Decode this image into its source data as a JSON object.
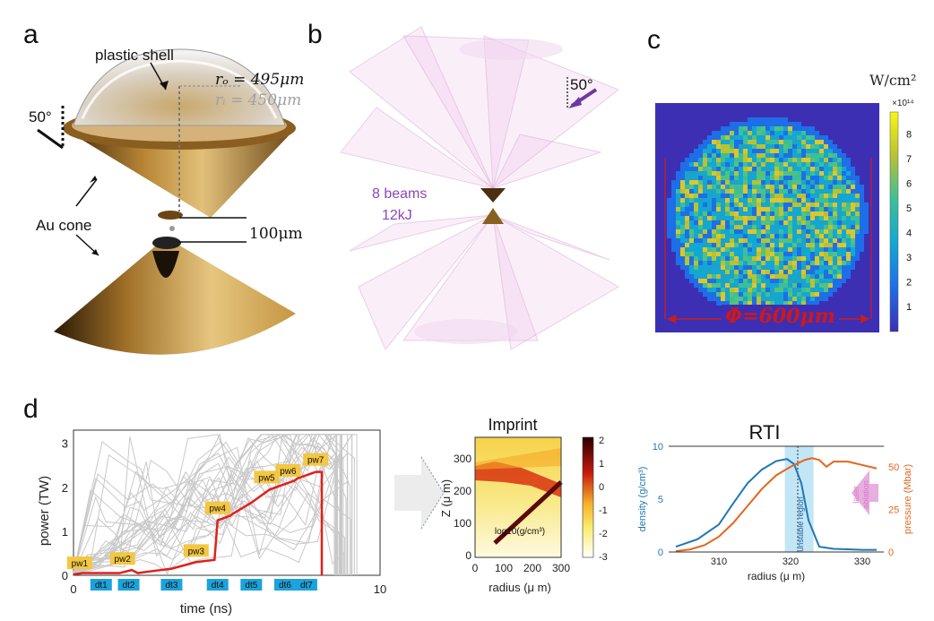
{
  "panels": {
    "a": {
      "label": "a",
      "shell_label": "plastic shell",
      "ro": "rₒ = 495μm",
      "ri": "rᵢ = 450μm",
      "angle": "50°",
      "cone_label": "Au cone",
      "gap": "100μm"
    },
    "b": {
      "label": "b",
      "angle": "50°",
      "beams_line1": "8 beams",
      "beams_line2": "12kJ"
    },
    "c": {
      "label": "c",
      "unit": "W/cm²",
      "scale": "×10¹⁴",
      "diameter": "Φ=600μm",
      "colorbar_ticks": [
        "1",
        "2",
        "3",
        "4",
        "5",
        "6",
        "7",
        "8"
      ]
    },
    "d": {
      "label": "d"
    }
  },
  "chart_data": [
    {
      "type": "line",
      "xlabel": "time (ns)",
      "ylabel": "power (TW)",
      "xlim": [
        0,
        10
      ],
      "ylim": [
        0,
        3.3
      ],
      "xticks": [
        "0",
        "10"
      ],
      "yticks": [
        "0",
        "1",
        "2",
        "3"
      ],
      "series": [
        {
          "x": [
            0,
            0.3,
            0.8,
            1.5,
            1.9,
            2.1,
            2.4,
            3.2,
            4.0,
            4.6,
            4.7,
            5.1,
            5.2,
            5.8,
            6.4,
            6.6,
            7.2,
            7.3,
            7.9,
            8.1,
            8.1
          ],
          "y": [
            0.02,
            0.05,
            0.05,
            0.05,
            0.12,
            0.05,
            0.08,
            0.15,
            0.3,
            0.35,
            1.25,
            1.35,
            1.4,
            1.65,
            1.95,
            2.0,
            2.15,
            2.2,
            2.35,
            2.35,
            0.0
          ]
        }
      ],
      "point_labels": [
        "pw1",
        "pw2",
        "pw3",
        "pw4",
        "pw5",
        "pw6",
        "pw7"
      ],
      "interval_labels": [
        "dt1",
        "dt2",
        "dt3",
        "dt4",
        "dt5",
        "dt6",
        "dt7"
      ]
    },
    {
      "type": "heatmap",
      "title": "Imprint",
      "xlabel": "radius (μ m)",
      "ylabel": "Z (μ m)",
      "xticks": [
        "0",
        "100",
        "200",
        "300"
      ],
      "yticks": [
        "0",
        "100",
        "200",
        "300"
      ],
      "colorbar_label": "log10(g/cm³)",
      "colorbar_ticks": [
        "2",
        "1",
        "0",
        "-1",
        "-2",
        "-3"
      ]
    },
    {
      "type": "line",
      "title": "RTI",
      "xlabel": "radius (μ m)",
      "ylabel_left": "density (g/cm³)",
      "ylabel_right": "pressure (Mbar)",
      "xticks": [
        "310",
        "320",
        "330"
      ],
      "yticks_left": [
        "0",
        "5",
        "10"
      ],
      "yticks_right": [
        "0",
        "25",
        "50"
      ],
      "series": [
        {
          "x": [
            304,
            307,
            310,
            312,
            314,
            316,
            318,
            319.5,
            320.5,
            321.5,
            322.5,
            324,
            326,
            328,
            330,
            332
          ],
          "y": [
            0.5,
            1.2,
            2.6,
            4.6,
            6.5,
            7.8,
            8.6,
            8.8,
            8.3,
            6.5,
            3.0,
            0.5,
            0.3,
            0.25,
            0.2,
            0.2
          ]
        },
        {
          "x": [
            304,
            306,
            308,
            310,
            312,
            314,
            316,
            318,
            320,
            322,
            323,
            324,
            325,
            326,
            328,
            330,
            332
          ],
          "y": [
            0.5,
            1.5,
            4,
            9,
            17,
            27,
            37,
            45,
            50,
            54,
            55,
            54,
            50,
            53,
            53,
            51,
            49
          ]
        }
      ],
      "annotations": [
        "unstable region",
        "laser ablation"
      ]
    }
  ]
}
